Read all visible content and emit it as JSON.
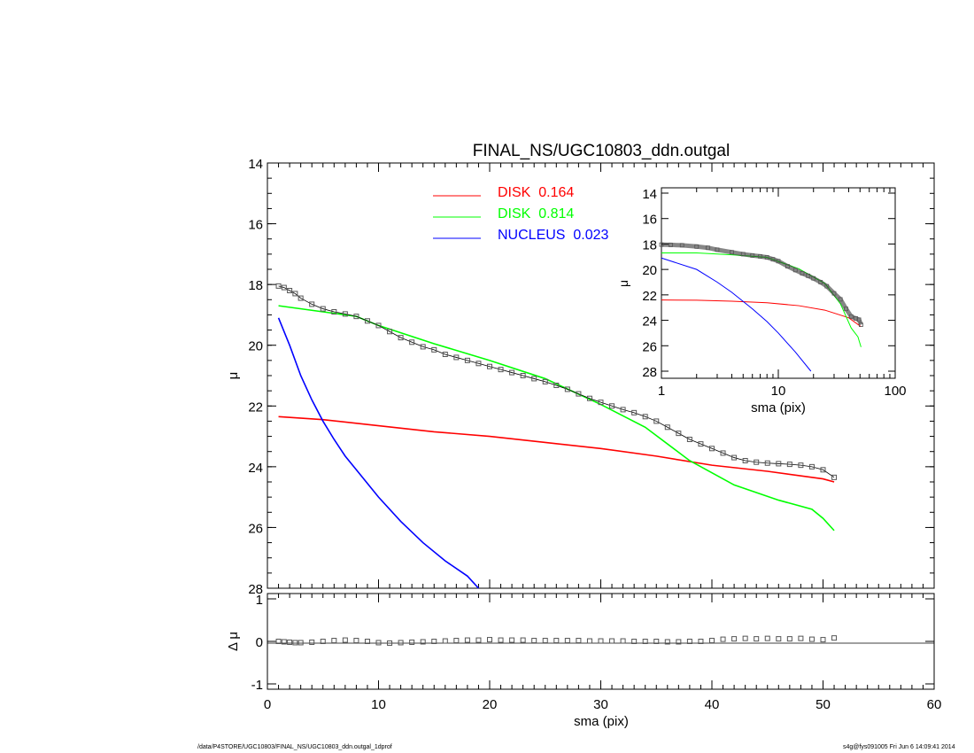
{
  "chart_data": {
    "title": "FINAL_NS/UGC10803_ddn.outgal",
    "main": {
      "type": "line",
      "xlabel": "",
      "ylabel": "μ",
      "xlim": [
        0,
        60
      ],
      "ylim": [
        28,
        14
      ],
      "x_ticks": [
        0,
        10,
        20,
        30,
        40,
        50,
        60
      ],
      "y_ticks": [
        14,
        16,
        18,
        20,
        22,
        24,
        26,
        28
      ],
      "legend_position": "top-center",
      "series": [
        {
          "name": "DISK  0.164",
          "color": "#ff0000",
          "x": [
            1,
            5,
            10,
            15,
            20,
            25,
            30,
            35,
            40,
            45,
            50,
            51
          ],
          "y": [
            22.35,
            22.45,
            22.65,
            22.85,
            23.0,
            23.2,
            23.4,
            23.65,
            23.95,
            24.15,
            24.4,
            24.5
          ]
        },
        {
          "name": "DISK  0.814",
          "color": "#00ff00",
          "x": [
            1,
            5,
            8,
            10,
            15,
            20,
            25,
            30,
            34,
            38,
            42,
            46,
            49,
            50,
            51
          ],
          "y": [
            18.7,
            18.9,
            19.05,
            19.35,
            19.95,
            20.5,
            21.1,
            21.95,
            22.7,
            23.8,
            24.6,
            25.1,
            25.4,
            25.7,
            26.1
          ]
        },
        {
          "name": "NUCLEUS  0.023",
          "color": "#0000ff",
          "x": [
            1,
            2,
            3,
            4,
            5,
            6,
            7,
            8,
            10,
            12,
            14,
            16,
            18,
            19
          ],
          "y": [
            19.1,
            20.0,
            21.0,
            21.8,
            22.5,
            23.1,
            23.65,
            24.1,
            25.0,
            25.8,
            26.5,
            27.1,
            27.6,
            28.0
          ]
        },
        {
          "name": "",
          "color": "#555555",
          "marker": "square",
          "x": [
            1,
            1.5,
            2,
            2.5,
            3,
            4,
            5,
            6,
            7,
            8,
            9,
            10,
            11,
            12,
            13,
            14,
            15,
            16,
            17,
            18,
            19,
            20,
            21,
            22,
            23,
            24,
            25,
            26,
            27,
            28,
            29,
            30,
            31,
            32,
            33,
            34,
            35,
            36,
            37,
            38,
            39,
            40,
            41,
            42,
            43,
            44,
            45,
            46,
            47,
            48,
            49,
            50,
            51
          ],
          "y": [
            18.05,
            18.1,
            18.2,
            18.3,
            18.45,
            18.65,
            18.8,
            18.9,
            18.97,
            19.05,
            19.2,
            19.35,
            19.55,
            19.75,
            19.9,
            20.05,
            20.15,
            20.3,
            20.4,
            20.5,
            20.6,
            20.7,
            20.8,
            20.9,
            21.0,
            21.1,
            21.2,
            21.32,
            21.45,
            21.6,
            21.75,
            21.88,
            22.0,
            22.12,
            22.22,
            22.35,
            22.5,
            22.7,
            22.9,
            23.1,
            23.25,
            23.4,
            23.55,
            23.7,
            23.8,
            23.85,
            23.88,
            23.9,
            23.92,
            23.95,
            24.0,
            24.1,
            24.35
          ]
        }
      ]
    },
    "residual": {
      "type": "scatter",
      "xlabel": "sma (pix)",
      "ylabel": "Δ μ",
      "xlim": [
        0,
        60
      ],
      "ylim": [
        -1,
        1
      ],
      "x_ticks": [
        0,
        10,
        20,
        30,
        40,
        50,
        60
      ],
      "y_ticks": [
        1,
        0,
        -1
      ],
      "series": [
        {
          "name": "",
          "color": "#555555",
          "marker": "square",
          "x": [
            1,
            1.5,
            2,
            2.5,
            3,
            4,
            5,
            6,
            7,
            8,
            9,
            10,
            11,
            12,
            13,
            14,
            15,
            16,
            17,
            18,
            19,
            20,
            21,
            22,
            23,
            24,
            25,
            26,
            27,
            28,
            29,
            30,
            31,
            32,
            33,
            34,
            35,
            36,
            37,
            38,
            39,
            40,
            41,
            42,
            43,
            44,
            45,
            46,
            47,
            48,
            49,
            50,
            51
          ],
          "y": [
            0.0,
            -0.01,
            -0.02,
            -0.03,
            -0.03,
            -0.02,
            0.0,
            0.02,
            0.03,
            0.02,
            0.0,
            -0.03,
            -0.04,
            -0.03,
            -0.02,
            -0.01,
            0.0,
            0.01,
            0.02,
            0.03,
            0.03,
            0.04,
            0.03,
            0.03,
            0.03,
            0.02,
            0.02,
            0.02,
            0.02,
            0.02,
            0.01,
            0.01,
            0.01,
            0.01,
            0.0,
            0.0,
            0.0,
            -0.01,
            -0.01,
            0.0,
            0.0,
            0.02,
            0.05,
            0.06,
            0.07,
            0.06,
            0.07,
            0.06,
            0.06,
            0.07,
            0.05,
            0.04,
            0.08
          ]
        }
      ]
    },
    "inset": {
      "type": "line",
      "xscale": "log",
      "xlabel": "sma (pix)",
      "ylabel": "μ",
      "xlim": [
        1,
        100
      ],
      "ylim": [
        28,
        14
      ],
      "x_ticks": [
        1,
        10,
        100
      ],
      "y_ticks": [
        14,
        16,
        18,
        20,
        22,
        24,
        26,
        28
      ],
      "series": [
        {
          "name": "",
          "color": "#ff0000",
          "x": [
            1,
            2,
            4,
            8,
            15,
            25,
            40,
            51
          ],
          "y": [
            22.4,
            22.42,
            22.5,
            22.62,
            22.85,
            23.2,
            23.8,
            24.5
          ]
        },
        {
          "name": "",
          "color": "#00ff00",
          "x": [
            1,
            2,
            4,
            8,
            15,
            25,
            34,
            42,
            48,
            51
          ],
          "y": [
            18.7,
            18.7,
            18.85,
            19.05,
            19.95,
            21.1,
            22.7,
            24.6,
            25.3,
            26.1
          ]
        },
        {
          "name": "",
          "color": "#0000ff",
          "x": [
            1,
            2,
            3,
            4,
            6,
            8,
            10,
            14,
            19
          ],
          "y": [
            19.1,
            20.0,
            21.0,
            21.8,
            23.1,
            24.1,
            25.0,
            26.5,
            28.0
          ]
        },
        {
          "name": "",
          "color": "#555555",
          "marker": "square",
          "x": [
            1,
            1.2,
            1.5,
            2,
            2.5,
            3,
            4,
            5,
            6,
            7,
            8,
            9,
            10,
            12,
            14,
            16,
            18,
            20,
            23,
            26,
            30,
            34,
            38,
            42,
            46,
            49,
            51
          ],
          "y": [
            18.05,
            18.07,
            18.1,
            18.2,
            18.3,
            18.45,
            18.65,
            18.8,
            18.9,
            18.97,
            19.05,
            19.2,
            19.35,
            19.75,
            20.05,
            20.3,
            20.5,
            20.7,
            21.0,
            21.32,
            21.88,
            22.35,
            23.1,
            23.7,
            23.85,
            23.95,
            24.35
          ]
        }
      ]
    }
  },
  "footer": {
    "left": "/data/P4STORE/UGC10803/FINAL_NS/UGC10803_ddn.outgal_1dprof",
    "right": "s4g@fys091005  Fri Jun  6 14:09:41 2014"
  }
}
